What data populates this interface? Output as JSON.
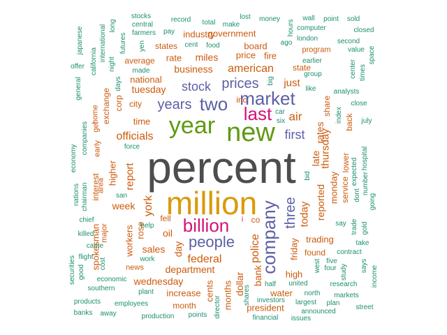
{
  "colors": {
    "gray": "#4d4d4d",
    "gold": "#d99a0b",
    "magenta": "#d4127a",
    "purple": "#5d5fa6",
    "green": "#5e9a12",
    "orange": "#cc5a0c",
    "teal": "#1c8f6f"
  },
  "words": [
    {
      "text": "percent",
      "color": "gray",
      "size": 64,
      "vertical": false
    },
    {
      "text": "million",
      "color": "gold",
      "size": 46,
      "vertical": false
    },
    {
      "text": "new",
      "color": "green",
      "size": 38,
      "vertical": false
    },
    {
      "text": "year",
      "color": "green",
      "size": 34,
      "vertical": false
    },
    {
      "text": "billion",
      "color": "magenta",
      "size": 26,
      "vertical": false
    },
    {
      "text": "last",
      "color": "magenta",
      "size": 26,
      "vertical": false
    },
    {
      "text": "market",
      "color": "purple",
      "size": 26,
      "vertical": false
    },
    {
      "text": "two",
      "color": "purple",
      "size": 26,
      "vertical": false
    },
    {
      "text": "company",
      "color": "purple",
      "size": 26,
      "vertical": true
    },
    {
      "text": "people",
      "color": "purple",
      "size": 22,
      "vertical": false
    },
    {
      "text": "three",
      "color": "purple",
      "size": 20,
      "vertical": true
    },
    {
      "text": "prices",
      "color": "purple",
      "size": 20,
      "vertical": false
    },
    {
      "text": "years",
      "color": "purple",
      "size": 20,
      "vertical": false
    },
    {
      "text": "stock",
      "color": "purple",
      "size": 18,
      "vertical": false
    },
    {
      "text": "first",
      "color": "purple",
      "size": 18,
      "vertical": false
    },
    {
      "text": "air",
      "color": "orange",
      "size": 17,
      "vertical": false
    },
    {
      "text": "american",
      "color": "orange",
      "size": 16,
      "vertical": false
    },
    {
      "text": "officials",
      "color": "orange",
      "size": 16,
      "vertical": false
    },
    {
      "text": "police",
      "color": "orange",
      "size": 16,
      "vertical": true
    },
    {
      "text": "federal",
      "color": "orange",
      "size": 16,
      "vertical": false
    },
    {
      "text": "york",
      "color": "orange",
      "size": 16,
      "vertical": true
    },
    {
      "text": "report",
      "color": "orange",
      "size": 15,
      "vertical": true
    },
    {
      "text": "business",
      "color": "orange",
      "size": 14,
      "vertical": false
    },
    {
      "text": "tuesday",
      "color": "orange",
      "size": 14,
      "vertical": false
    },
    {
      "text": "today",
      "color": "orange",
      "size": 15,
      "vertical": true
    },
    {
      "text": "thursday",
      "color": "orange",
      "size": 15,
      "vertical": true
    },
    {
      "text": "just",
      "color": "orange",
      "size": 15,
      "vertical": false
    },
    {
      "text": "miles",
      "color": "orange",
      "size": 14,
      "vertical": false
    },
    {
      "text": "rate",
      "color": "orange",
      "size": 13,
      "vertical": false
    },
    {
      "text": "dollar",
      "color": "orange",
      "size": 14,
      "vertical": true
    },
    {
      "text": "bank",
      "color": "orange",
      "size": 14,
      "vertical": true
    },
    {
      "text": "oil",
      "color": "orange",
      "size": 14,
      "vertical": false
    },
    {
      "text": "sales",
      "color": "orange",
      "size": 14,
      "vertical": false
    },
    {
      "text": "week",
      "color": "orange",
      "size": 14,
      "vertical": false
    },
    {
      "text": "reported",
      "color": "orange",
      "size": 14,
      "vertical": true
    },
    {
      "text": "late",
      "color": "orange",
      "size": 14,
      "vertical": true
    },
    {
      "text": "rates",
      "color": "orange",
      "size": 14,
      "vertical": true
    },
    {
      "text": "department",
      "color": "orange",
      "size": 14,
      "vertical": false
    },
    {
      "text": "wednesday",
      "color": "orange",
      "size": 14,
      "vertical": false
    },
    {
      "text": "time",
      "color": "orange",
      "size": 13,
      "vertical": false
    },
    {
      "text": "national",
      "color": "orange",
      "size": 13,
      "vertical": false
    },
    {
      "text": "higher",
      "color": "orange",
      "size": 13,
      "vertical": true
    },
    {
      "text": "day",
      "color": "orange",
      "size": 14,
      "vertical": true
    },
    {
      "text": "friday",
      "color": "orange",
      "size": 13,
      "vertical": true
    },
    {
      "text": "high",
      "color": "orange",
      "size": 13,
      "vertical": false
    },
    {
      "text": "water",
      "color": "orange",
      "size": 13,
      "vertical": false
    },
    {
      "text": "cents",
      "color": "orange",
      "size": 13,
      "vertical": true
    },
    {
      "text": "months",
      "color": "orange",
      "size": 13,
      "vertical": true
    },
    {
      "text": "increase",
      "color": "orange",
      "size": 13,
      "vertical": false
    },
    {
      "text": "month",
      "color": "orange",
      "size": 12,
      "vertical": false
    },
    {
      "text": "president",
      "color": "orange",
      "size": 13,
      "vertical": false
    },
    {
      "text": "trading",
      "color": "orange",
      "size": 13,
      "vertical": false
    },
    {
      "text": "found",
      "color": "orange",
      "size": 12,
      "vertical": false
    },
    {
      "text": "monday",
      "color": "orange",
      "size": 13,
      "vertical": true
    },
    {
      "text": "interest",
      "color": "orange",
      "size": 12,
      "vertical": true
    },
    {
      "text": "workers",
      "color": "orange",
      "size": 13,
      "vertical": true
    },
    {
      "text": "rose",
      "color": "orange",
      "size": 13,
      "vertical": true
    },
    {
      "text": "spokesman",
      "color": "orange",
      "size": 13,
      "vertical": true
    },
    {
      "text": "fell",
      "color": "orange",
      "size": 12,
      "vertical": false
    },
    {
      "text": "co",
      "color": "orange",
      "size": 12,
      "vertical": false
    },
    {
      "text": "state",
      "color": "orange",
      "size": 12,
      "vertical": false
    },
    {
      "text": "price",
      "color": "orange",
      "size": 13,
      "vertical": false
    },
    {
      "text": "board",
      "color": "orange",
      "size": 13,
      "vertical": false
    },
    {
      "text": "fire",
      "color": "orange",
      "size": 13,
      "vertical": false
    },
    {
      "text": "government",
      "color": "orange",
      "size": 13,
      "vertical": false
    },
    {
      "text": "industry",
      "color": "orange",
      "size": 13,
      "vertical": false
    },
    {
      "text": "states",
      "color": "orange",
      "size": 12,
      "vertical": false
    },
    {
      "text": "average",
      "color": "orange",
      "size": 12,
      "vertical": false
    },
    {
      "text": "city",
      "color": "orange",
      "size": 12,
      "vertical": false
    },
    {
      "text": "inc",
      "color": "orange",
      "size": 12,
      "vertical": false
    },
    {
      "text": "corp",
      "color": "orange",
      "size": 12,
      "vertical": true
    },
    {
      "text": "exchange",
      "color": "orange",
      "size": 12,
      "vertical": true
    },
    {
      "text": "lower",
      "color": "orange",
      "size": 12,
      "vertical": true
    },
    {
      "text": "service",
      "color": "orange",
      "size": 12,
      "vertical": true
    },
    {
      "text": "back",
      "color": "orange",
      "size": 12,
      "vertical": true
    },
    {
      "text": "share",
      "color": "orange",
      "size": 12,
      "vertical": true
    },
    {
      "text": "area",
      "color": "orange",
      "size": 11,
      "vertical": true
    },
    {
      "text": "early",
      "color": "orange",
      "size": 11,
      "vertical": true
    },
    {
      "text": "get",
      "color": "orange",
      "size": 11,
      "vertical": true
    },
    {
      "text": "home",
      "color": "orange",
      "size": 11,
      "vertical": true
    },
    {
      "text": "major",
      "color": "orange",
      "size": 11,
      "vertical": true
    },
    {
      "text": "news",
      "color": "orange",
      "size": 11,
      "vertical": false
    },
    {
      "text": "program",
      "color": "orange",
      "size": 11,
      "vertical": false
    },
    {
      "text": "i",
      "color": "magenta",
      "size": 11,
      "vertical": false
    },
    {
      "text": "big",
      "color": "teal",
      "size": 10,
      "vertical": true
    },
    {
      "text": "car",
      "color": "teal",
      "size": 10,
      "vertical": false
    },
    {
      "text": "six",
      "color": "teal",
      "size": 10,
      "vertical": false
    },
    {
      "text": "stocks",
      "color": "teal",
      "size": 10,
      "vertical": false
    },
    {
      "text": "record",
      "color": "teal",
      "size": 10,
      "vertical": false
    },
    {
      "text": "total",
      "color": "teal",
      "size": 10,
      "vertical": false
    },
    {
      "text": "lost",
      "color": "teal",
      "size": 10,
      "vertical": false
    },
    {
      "text": "money",
      "color": "teal",
      "size": 10,
      "vertical": false
    },
    {
      "text": "wall",
      "color": "teal",
      "size": 10,
      "vertical": false
    },
    {
      "text": "point",
      "color": "teal",
      "size": 10,
      "vertical": false
    },
    {
      "text": "sold",
      "color": "teal",
      "size": 10,
      "vertical": false
    },
    {
      "text": "central",
      "color": "teal",
      "size": 10,
      "vertical": false
    },
    {
      "text": "make",
      "color": "teal",
      "size": 10,
      "vertical": false
    },
    {
      "text": "hours",
      "color": "teal",
      "size": 10,
      "vertical": true
    },
    {
      "text": "computer",
      "color": "teal",
      "size": 10,
      "vertical": false
    },
    {
      "text": "closed",
      "color": "teal",
      "size": 10,
      "vertical": false
    },
    {
      "text": "farmers",
      "color": "teal",
      "size": 10,
      "vertical": false
    },
    {
      "text": "pay",
      "color": "teal",
      "size": 10,
      "vertical": false
    },
    {
      "text": "london",
      "color": "teal",
      "size": 10,
      "vertical": false
    },
    {
      "text": "second",
      "color": "teal",
      "size": 10,
      "vertical": false
    },
    {
      "text": "cent",
      "color": "teal",
      "size": 10,
      "vertical": false
    },
    {
      "text": "food",
      "color": "teal",
      "size": 10,
      "vertical": false
    },
    {
      "text": "ago",
      "color": "teal",
      "size": 10,
      "vertical": false
    },
    {
      "text": "value",
      "color": "teal",
      "size": 10,
      "vertical": false
    },
    {
      "text": "japanese",
      "color": "teal",
      "size": 10,
      "vertical": true
    },
    {
      "text": "international",
      "color": "teal",
      "size": 10,
      "vertical": true
    },
    {
      "text": "long",
      "color": "teal",
      "size": 10,
      "vertical": true
    },
    {
      "text": "futures",
      "color": "teal",
      "size": 10,
      "vertical": true
    },
    {
      "text": "yen",
      "color": "teal",
      "size": 10,
      "vertical": true
    },
    {
      "text": "earlier",
      "color": "teal",
      "size": 10,
      "vertical": false
    },
    {
      "text": "space",
      "color": "teal",
      "size": 10,
      "vertical": true
    },
    {
      "text": "california",
      "color": "teal",
      "size": 10,
      "vertical": true
    },
    {
      "text": "night",
      "color": "teal",
      "size": 10,
      "vertical": true
    },
    {
      "text": "offer",
      "color": "teal",
      "size": 10,
      "vertical": false
    },
    {
      "text": "made",
      "color": "teal",
      "size": 10,
      "vertical": false
    },
    {
      "text": "group",
      "color": "teal",
      "size": 10,
      "vertical": false
    },
    {
      "text": "center",
      "color": "teal",
      "size": 10,
      "vertical": true
    },
    {
      "text": "times",
      "color": "teal",
      "size": 10,
      "vertical": true
    },
    {
      "text": "days",
      "color": "teal",
      "size": 10,
      "vertical": true
    },
    {
      "text": "like",
      "color": "teal",
      "size": 10,
      "vertical": false
    },
    {
      "text": "analysts",
      "color": "teal",
      "size": 10,
      "vertical": false
    },
    {
      "text": "general",
      "color": "teal",
      "size": 10,
      "vertical": true
    },
    {
      "text": "close",
      "color": "teal",
      "size": 10,
      "vertical": false
    },
    {
      "text": "index",
      "color": "teal",
      "size": 10,
      "vertical": true
    },
    {
      "text": "july",
      "color": "teal",
      "size": 10,
      "vertical": false
    },
    {
      "text": "companies",
      "color": "teal",
      "size": 10,
      "vertical": true
    },
    {
      "text": "economy",
      "color": "teal",
      "size": 10,
      "vertical": true
    },
    {
      "text": "force",
      "color": "teal",
      "size": 10,
      "vertical": false
    },
    {
      "text": "hospital",
      "color": "teal",
      "size": 10,
      "vertical": true
    },
    {
      "text": "expected",
      "color": "teal",
      "size": 10,
      "vertical": true
    },
    {
      "text": "bid",
      "color": "teal",
      "size": 10,
      "vertical": true
    },
    {
      "text": "number",
      "color": "teal",
      "size": 10,
      "vertical": true
    },
    {
      "text": "nations",
      "color": "teal",
      "size": 10,
      "vertical": true
    },
    {
      "text": "chairman",
      "color": "teal",
      "size": 10,
      "vertical": true
    },
    {
      "text": "san",
      "color": "teal",
      "size": 10,
      "vertical": false
    },
    {
      "text": "dont",
      "color": "teal",
      "size": 10,
      "vertical": true
    },
    {
      "text": "going",
      "color": "teal",
      "size": 10,
      "vertical": true
    },
    {
      "text": "chief",
      "color": "teal",
      "size": 10,
      "vertical": false
    },
    {
      "text": "help",
      "color": "teal",
      "size": 10,
      "vertical": false
    },
    {
      "text": "say",
      "color": "teal",
      "size": 10,
      "vertical": false
    },
    {
      "text": "killed",
      "color": "teal",
      "size": 10,
      "vertical": false
    },
    {
      "text": "trade",
      "color": "teal",
      "size": 10,
      "vertical": true
    },
    {
      "text": "gold",
      "color": "teal",
      "size": 10,
      "vertical": true
    },
    {
      "text": "take",
      "color": "teal",
      "size": 10,
      "vertical": false
    },
    {
      "text": "came",
      "color": "teal",
      "size": 10,
      "vertical": false
    },
    {
      "text": "contract",
      "color": "teal",
      "size": 10,
      "vertical": false
    },
    {
      "text": "flight",
      "color": "teal",
      "size": 10,
      "vertical": false
    },
    {
      "text": "work",
      "color": "teal",
      "size": 10,
      "vertical": false
    },
    {
      "text": "five",
      "color": "teal",
      "size": 10,
      "vertical": false
    },
    {
      "text": "cost",
      "color": "teal",
      "size": 10,
      "vertical": true
    },
    {
      "text": "four",
      "color": "teal",
      "size": 10,
      "vertical": false
    },
    {
      "text": "study",
      "color": "teal",
      "size": 10,
      "vertical": true
    },
    {
      "text": "says",
      "color": "teal",
      "size": 10,
      "vertical": true
    },
    {
      "text": "west",
      "color": "teal",
      "size": 10,
      "vertical": true
    },
    {
      "text": "income",
      "color": "teal",
      "size": 10,
      "vertical": true
    },
    {
      "text": "securities",
      "color": "teal",
      "size": 10,
      "vertical": true
    },
    {
      "text": "good",
      "color": "teal",
      "size": 10,
      "vertical": true
    },
    {
      "text": "economic",
      "color": "teal",
      "size": 10,
      "vertical": false
    },
    {
      "text": "half",
      "color": "teal",
      "size": 10,
      "vertical": false
    },
    {
      "text": "united",
      "color": "teal",
      "size": 10,
      "vertical": false
    },
    {
      "text": "research",
      "color": "teal",
      "size": 10,
      "vertical": false
    },
    {
      "text": "southern",
      "color": "teal",
      "size": 10,
      "vertical": false
    },
    {
      "text": "plant",
      "color": "teal",
      "size": 10,
      "vertical": false
    },
    {
      "text": "shares",
      "color": "teal",
      "size": 10,
      "vertical": true
    },
    {
      "text": "north",
      "color": "teal",
      "size": 10,
      "vertical": false
    },
    {
      "text": "markets",
      "color": "teal",
      "size": 10,
      "vertical": false
    },
    {
      "text": "products",
      "color": "teal",
      "size": 10,
      "vertical": false
    },
    {
      "text": "employees",
      "color": "teal",
      "size": 10,
      "vertical": false
    },
    {
      "text": "director",
      "color": "teal",
      "size": 10,
      "vertical": true
    },
    {
      "text": "investors",
      "color": "teal",
      "size": 10,
      "vertical": false
    },
    {
      "text": "largest",
      "color": "teal",
      "size": 10,
      "vertical": false
    },
    {
      "text": "plan",
      "color": "teal",
      "size": 10,
      "vertical": false
    },
    {
      "text": "street",
      "color": "teal",
      "size": 10,
      "vertical": false
    },
    {
      "text": "announced",
      "color": "teal",
      "size": 10,
      "vertical": false
    },
    {
      "text": "banks",
      "color": "teal",
      "size": 10,
      "vertical": false
    },
    {
      "text": "away",
      "color": "teal",
      "size": 10,
      "vertical": false
    },
    {
      "text": "production",
      "color": "teal",
      "size": 10,
      "vertical": false
    },
    {
      "text": "points",
      "color": "teal",
      "size": 10,
      "vertical": false
    },
    {
      "text": "financial",
      "color": "teal",
      "size": 10,
      "vertical": false
    },
    {
      "text": "issues",
      "color": "teal",
      "size": 10,
      "vertical": false
    }
  ]
}
